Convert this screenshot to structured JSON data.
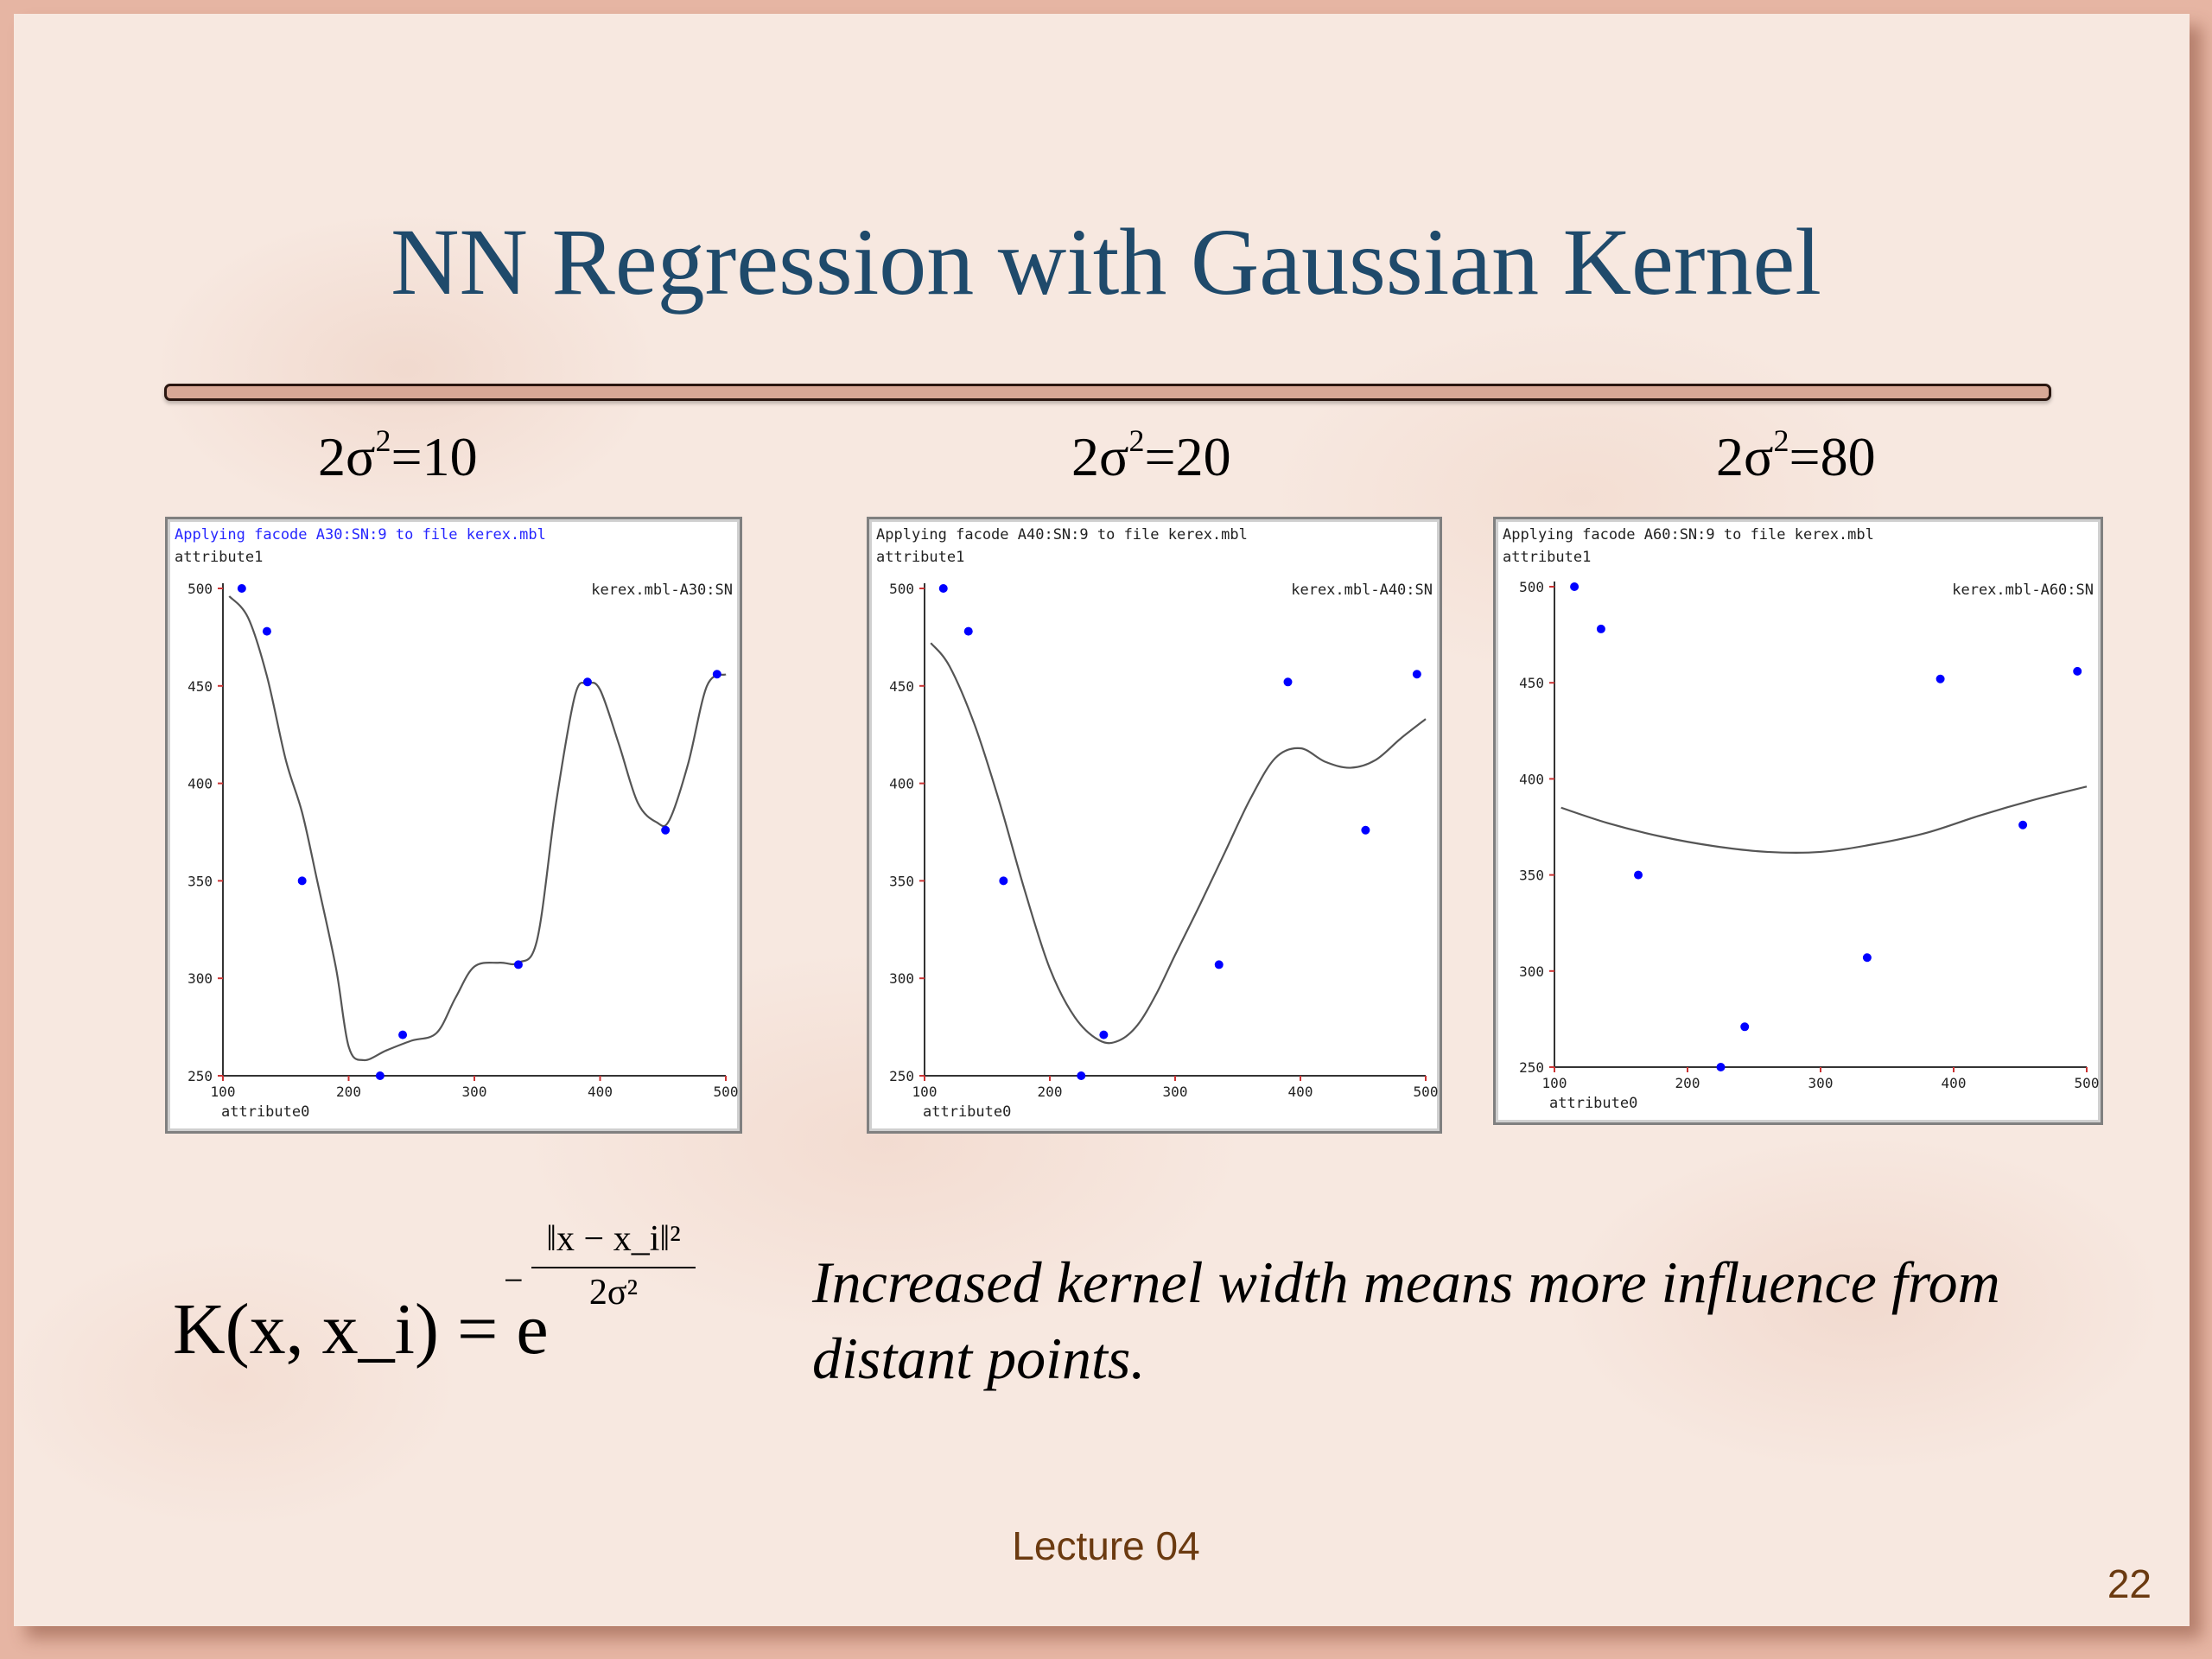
{
  "slide": {
    "title": "NN Regression with Gaussian Kernel",
    "footer": "Lecture 04",
    "page_number": "22",
    "caption": "Increased kernel width means more influence from distant points.",
    "formula": {
      "lhs": "K(x, x_i) = e",
      "exponent_numerator": "‖x − x_i‖²",
      "exponent_denominator": "2σ²",
      "sign": "−"
    },
    "colors": {
      "title": "#1f4a6b",
      "footer": "#6b3a10",
      "rule": "#d8a896",
      "point": "#0000ff",
      "curve": "#555555"
    }
  },
  "panels": [
    {
      "label_prefix": "2σ",
      "label_sup": "2",
      "label_suffix": "=10",
      "header": "Applying facode A30:SN:9 to file kerex.mbl",
      "ylabel": "attribute1",
      "xlabel": "attribute0",
      "legend": "kerex.mbl-A30:SN"
    },
    {
      "label_prefix": "2σ",
      "label_sup": "2",
      "label_suffix": "=20",
      "header": "Applying facode A40:SN:9 to file kerex.mbl",
      "ylabel": "attribute1",
      "xlabel": "attribute0",
      "legend": "kerex.mbl-A40:SN"
    },
    {
      "label_prefix": "2σ",
      "label_sup": "2",
      "label_suffix": "=80",
      "header": "Applying facode A60:SN:9 to file kerex.mbl",
      "ylabel": "attribute1",
      "xlabel": "attribute0",
      "legend": "kerex.mbl-A60:SN"
    }
  ],
  "chart_data": [
    {
      "type": "scatter",
      "title": "Applying facode A30:SN:9 to file kerex.mbl",
      "xlabel": "attribute0",
      "ylabel": "attribute1",
      "xlim": [
        100,
        500
      ],
      "ylim": [
        250,
        500
      ],
      "xticks": [
        100,
        200,
        300,
        400,
        500
      ],
      "yticks": [
        250,
        300,
        350,
        400,
        450,
        500
      ],
      "points": {
        "x": [
          115,
          135,
          163,
          225,
          243,
          335,
          390,
          452,
          493
        ],
        "y": [
          500,
          478,
          350,
          250,
          271,
          307,
          452,
          376,
          456
        ]
      },
      "curve": {
        "name": "kerex.mbl-A30:SN",
        "x": [
          105,
          120,
          135,
          150,
          163,
          175,
          190,
          200,
          212,
          230,
          250,
          270,
          285,
          300,
          320,
          335,
          350,
          365,
          380,
          390,
          400,
          415,
          430,
          445,
          455,
          470,
          485,
          500
        ],
        "y": [
          496,
          485,
          455,
          412,
          385,
          350,
          305,
          265,
          258,
          263,
          268,
          272,
          290,
          306,
          308,
          308,
          320,
          390,
          445,
          451,
          448,
          420,
          390,
          380,
          381,
          410,
          450,
          456
        ]
      }
    },
    {
      "type": "scatter",
      "title": "Applying facode A40:SN:9 to file kerex.mbl",
      "xlabel": "attribute0",
      "ylabel": "attribute1",
      "xlim": [
        100,
        500
      ],
      "ylim": [
        250,
        500
      ],
      "xticks": [
        100,
        200,
        300,
        400,
        500
      ],
      "yticks": [
        250,
        300,
        350,
        400,
        450,
        500
      ],
      "points": {
        "x": [
          115,
          135,
          163,
          225,
          243,
          335,
          390,
          452,
          493
        ],
        "y": [
          500,
          478,
          350,
          250,
          271,
          307,
          452,
          376,
          456
        ]
      },
      "curve": {
        "name": "kerex.mbl-A40:SN",
        "x": [
          105,
          120,
          140,
          160,
          180,
          200,
          220,
          240,
          255,
          270,
          285,
          300,
          320,
          340,
          360,
          380,
          400,
          420,
          440,
          460,
          480,
          500
        ],
        "y": [
          472,
          460,
          430,
          390,
          345,
          305,
          280,
          268,
          268,
          276,
          292,
          312,
          338,
          365,
          392,
          413,
          418,
          411,
          408,
          412,
          423,
          433
        ]
      }
    },
    {
      "type": "scatter",
      "title": "Applying facode A60:SN:9 to file kerex.mbl",
      "xlabel": "attribute0",
      "ylabel": "attribute1",
      "xlim": [
        100,
        500
      ],
      "ylim": [
        250,
        500
      ],
      "xticks": [
        100,
        200,
        300,
        400,
        500
      ],
      "yticks": [
        250,
        300,
        350,
        400,
        450,
        500
      ],
      "points": {
        "x": [
          115,
          135,
          163,
          225,
          243,
          335,
          390,
          452,
          493
        ],
        "y": [
          500,
          478,
          350,
          250,
          271,
          307,
          452,
          376,
          456
        ]
      },
      "curve": {
        "name": "kerex.mbl-A60:SN",
        "x": [
          105,
          140,
          180,
          220,
          260,
          300,
          340,
          380,
          420,
          460,
          500
        ],
        "y": [
          385,
          377,
          370,
          365,
          362,
          362,
          366,
          372,
          381,
          389,
          396
        ]
      }
    }
  ]
}
